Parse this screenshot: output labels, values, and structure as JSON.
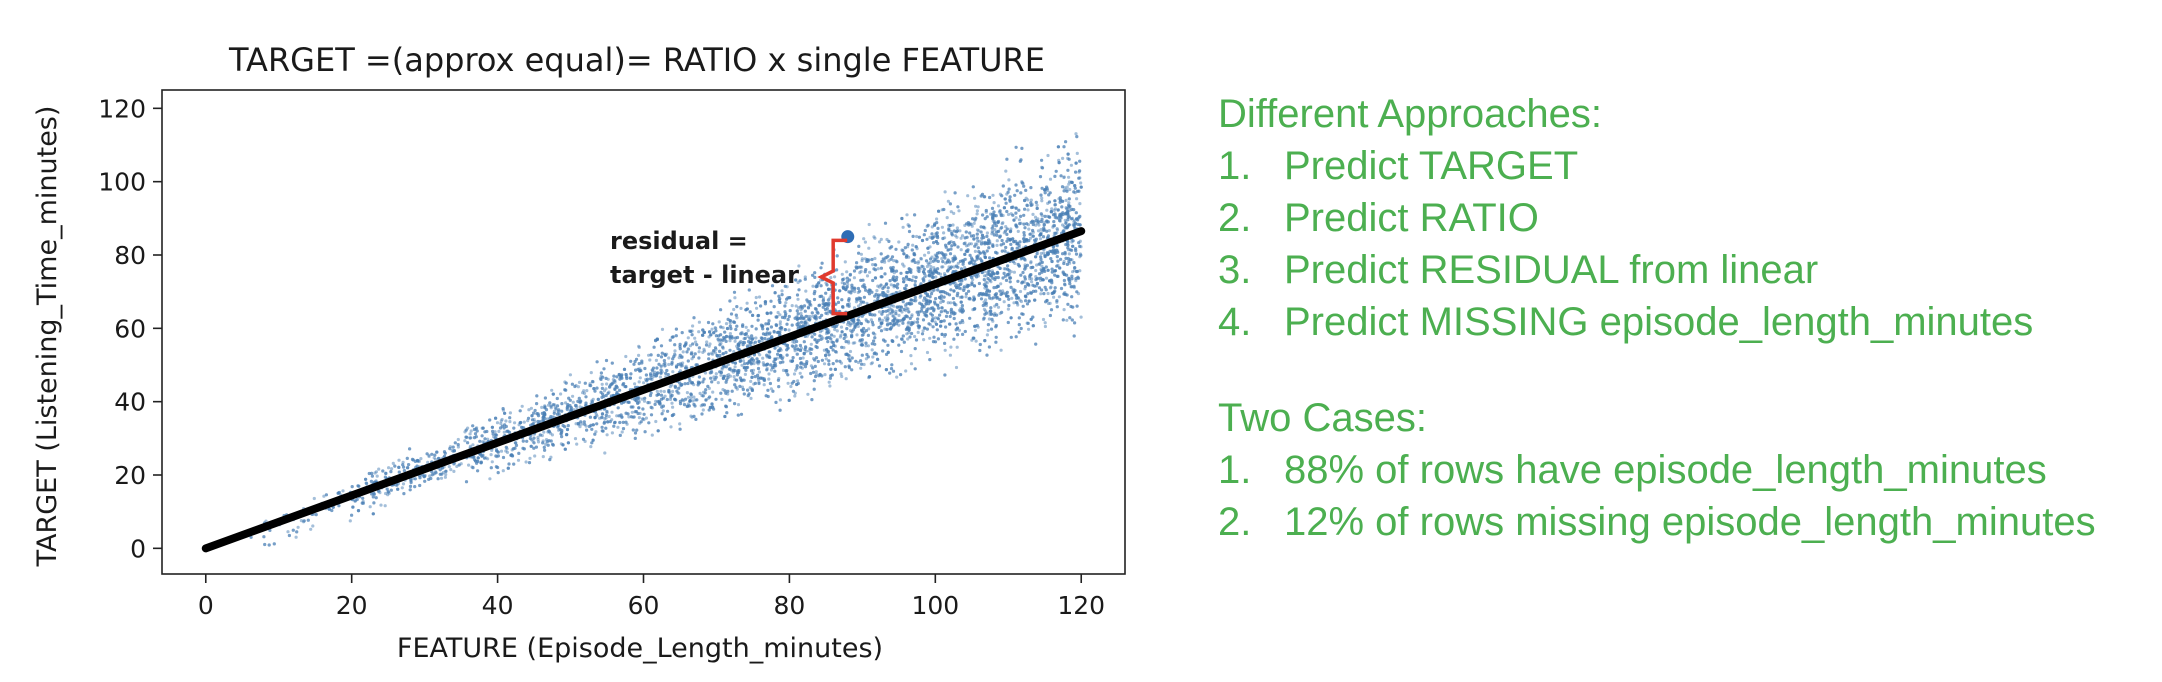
{
  "chart_data": {
    "type": "scatter",
    "title": "TARGET =(approx equal)= RATIO x single FEATURE",
    "xlabel": "FEATURE (Episode_Length_minutes)",
    "ylabel": "TARGET (Listening_Time_minutes)",
    "xlim": [
      -6,
      126
    ],
    "ylim": [
      -7,
      125
    ],
    "xticks": [
      0,
      20,
      40,
      60,
      80,
      100,
      120
    ],
    "yticks": [
      0,
      20,
      40,
      60,
      80,
      100,
      120
    ],
    "grid": false,
    "scatter_description": "Dense cloud of roughly 8000 points; x ranges approx 5 to 120, target roughly between 0.45*x and 1.0*x",
    "scatter_color": "#4a7fb5",
    "fit_line": {
      "x": [
        0,
        120
      ],
      "y": [
        0,
        86.5
      ],
      "color": "#000000"
    },
    "highlight_point": {
      "x": 88,
      "y": 85,
      "color": "#2f6db5"
    },
    "annotation": {
      "text_line1": "residual =",
      "text_line2": "target - linear",
      "color": "#e03a2e",
      "bracket_x": 86,
      "bracket_y": [
        64,
        84
      ]
    }
  },
  "notes": {
    "approaches_title": "Different Approaches:",
    "approaches": [
      {
        "num": "1.",
        "text": "Predict TARGET"
      },
      {
        "num": "2.",
        "text": "Predict RATIO"
      },
      {
        "num": "3.",
        "text": "Predict RESIDUAL from linear"
      },
      {
        "num": "4.",
        "text": "Predict MISSING episode_length_minutes"
      }
    ],
    "cases_title": "Two Cases:",
    "cases": [
      {
        "num": "1.",
        "text": "88% of rows have episode_length_minutes"
      },
      {
        "num": "2.",
        "text": "12% of rows missing episode_length_minutes"
      }
    ]
  }
}
